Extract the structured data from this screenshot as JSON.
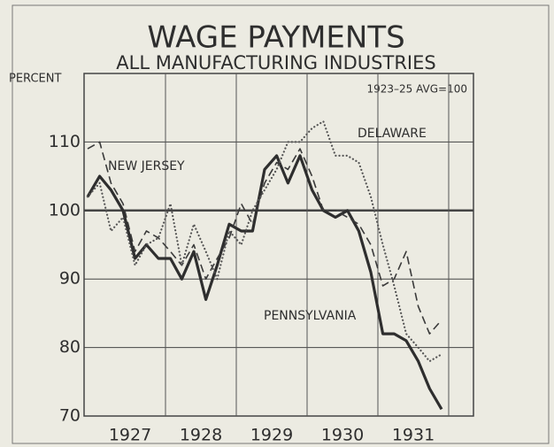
{
  "chart_data": {
    "type": "line",
    "title": "WAGE PAYMENTS",
    "subtitle": "ALL MANUFACTURING INDUSTRIES",
    "y_label": "PERCENT",
    "note": "1923–25 AVG=100",
    "x": [
      1926.4,
      1926.57,
      1926.73,
      1926.9,
      1927.07,
      1927.23,
      1927.4,
      1927.57,
      1927.73,
      1927.9,
      1928.07,
      1928.23,
      1928.4,
      1928.57,
      1928.73,
      1928.9,
      1929.07,
      1929.23,
      1929.4,
      1929.57,
      1929.73,
      1929.9,
      1930.07,
      1930.23,
      1930.4,
      1930.57,
      1930.73,
      1930.9,
      1931.07,
      1931.23,
      1931.4
    ],
    "series": [
      {
        "name": "PENNSYLVANIA",
        "color": "#2e2e2e",
        "style": "solid",
        "values": [
          102,
          105,
          103,
          100,
          93,
          95,
          93,
          93,
          90,
          94,
          87,
          92,
          98,
          97,
          97,
          106,
          108,
          104,
          108,
          103,
          100,
          99,
          100,
          97,
          91,
          82,
          82,
          81,
          78,
          74,
          71
        ]
      },
      {
        "name": "NEW JERSEY",
        "color": "#3a3a3a",
        "style": "dashed",
        "values": [
          109,
          110,
          104,
          101,
          94,
          97,
          96,
          94,
          92,
          95,
          90,
          93,
          96,
          101,
          98,
          104,
          107,
          106,
          109,
          105,
          100,
          100,
          99,
          98,
          95,
          89,
          90,
          94,
          86,
          82,
          84
        ]
      },
      {
        "name": "DELAWARE",
        "color": "#555555",
        "style": "dotted",
        "values": [
          102,
          104,
          97,
          99,
          92,
          95,
          96,
          101,
          92,
          98,
          94,
          90,
          97,
          95,
          100,
          103,
          106,
          110,
          110,
          112,
          113,
          108,
          108,
          107,
          102,
          95,
          89,
          82,
          80,
          78,
          79
        ]
      }
    ],
    "xlim": [
      1926.35,
      1931.85
    ],
    "xticks": [
      1927,
      1928,
      1929,
      1930,
      1931
    ],
    "ylim": [
      70,
      120
    ],
    "yticks": [
      70,
      80,
      90,
      100,
      110
    ],
    "grid": true
  }
}
